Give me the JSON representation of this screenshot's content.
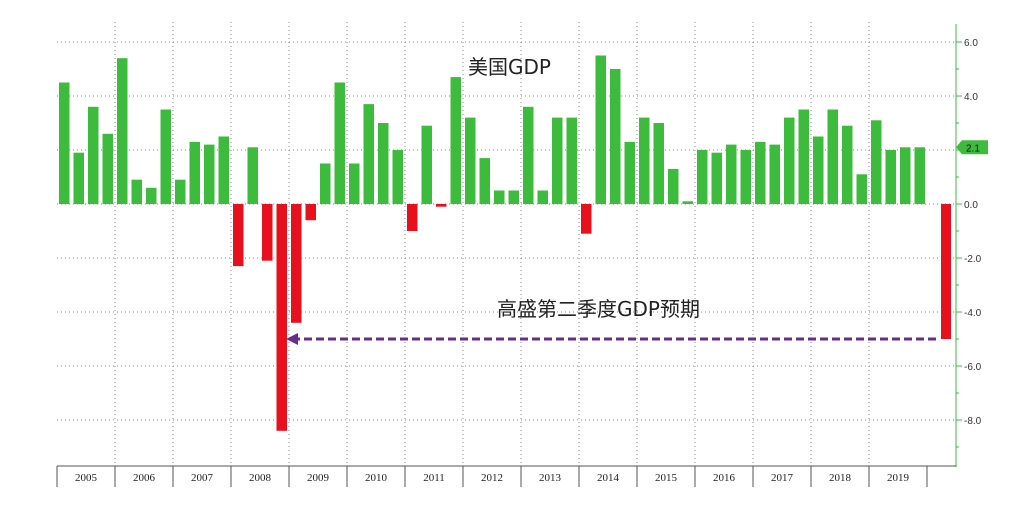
{
  "chart_data": {
    "type": "bar",
    "title": "美国GDP",
    "annotation": "高盛第二季度GDP预期",
    "xlabel": "",
    "ylabel": "",
    "ylim": [
      -10,
      6.5
    ],
    "y_ticks": [
      "6.0",
      "4.0",
      "2.0",
      "0.0",
      "-2.0",
      "-4.0",
      "-6.0",
      "-8.0"
    ],
    "y_tick_values": [
      6,
      4,
      2,
      0,
      -2,
      -4,
      -6,
      -8
    ],
    "last_value_label": "2.1",
    "positive_color": "#3dbb3d",
    "negative_color": "#e8101c",
    "arrow_color": "#6a2c8c",
    "years": [
      "2005",
      "2006",
      "2007",
      "2008",
      "2009",
      "2010",
      "2011",
      "2012",
      "2013",
      "2014",
      "2015",
      "2016",
      "2017",
      "2018",
      "2019"
    ],
    "quarterly_values": [
      4.5,
      1.9,
      3.6,
      2.6,
      5.4,
      0.9,
      0.6,
      3.5,
      0.9,
      2.3,
      2.2,
      2.5,
      -2.3,
      2.1,
      -2.1,
      -8.4,
      -4.4,
      -0.6,
      1.5,
      4.5,
      1.5,
      3.7,
      3.0,
      2.0,
      -1.0,
      2.9,
      -0.1,
      4.7,
      3.2,
      1.7,
      0.5,
      0.5,
      3.6,
      0.5,
      3.2,
      3.2,
      -1.1,
      5.5,
      5.0,
      2.3,
      3.2,
      3.0,
      1.3,
      0.1,
      2.0,
      1.9,
      2.2,
      2.0,
      2.3,
      2.2,
      3.2,
      3.5,
      2.5,
      3.5,
      2.9,
      1.1,
      3.1,
      2.0,
      2.1,
      2.1
    ],
    "forecast_value": -5.0
  }
}
